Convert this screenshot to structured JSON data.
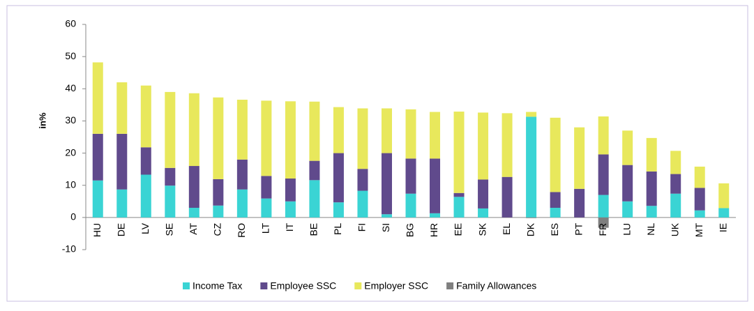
{
  "chart_data": {
    "type": "stacked_bar",
    "y_label": "in%",
    "categories": [
      "HU",
      "DE",
      "LV",
      "SE",
      "AT",
      "CZ",
      "RO",
      "LT",
      "IT",
      "BE",
      "PL",
      "FI",
      "SI",
      "BG",
      "HR",
      "EE",
      "SK",
      "EL",
      "DK",
      "ES",
      "PT",
      "FR",
      "LU",
      "NL",
      "UK",
      "MT",
      "IE"
    ],
    "series": [
      {
        "name": "Income Tax",
        "color": "#3ad4d4",
        "values": [
          11.5,
          8.7,
          13.3,
          9.9,
          3,
          3.7,
          8.7,
          5.9,
          5,
          11.6,
          4.7,
          8.3,
          1,
          7.4,
          1.3,
          6.4,
          2.8,
          0,
          31.3,
          3,
          0,
          7,
          5,
          3.6,
          7.4,
          2.2,
          2.9
        ]
      },
      {
        "name": "Employee SSC",
        "color": "#604a8c",
        "values": [
          14.5,
          17.3,
          8.5,
          5.5,
          13,
          8.2,
          9.3,
          7,
          7.1,
          6,
          15.3,
          6.8,
          19,
          10.9,
          17,
          1.2,
          9,
          12.6,
          0,
          4.9,
          8.9,
          12.6,
          11.3,
          10.7,
          6.1,
          7,
          0
        ]
      },
      {
        "name": "Employer SSC",
        "color": "#e8e85c",
        "values": [
          22.2,
          16,
          19.2,
          23.6,
          22.6,
          25.4,
          18.6,
          23.4,
          24,
          18.4,
          14.3,
          18.8,
          13.9,
          15.3,
          14.5,
          25.3,
          20.8,
          19.8,
          1.5,
          23.1,
          19.1,
          11.8,
          10.7,
          10.4,
          7.2,
          6.6,
          7.7
        ]
      },
      {
        "name": "Family Allowances",
        "color": "#7f7f7f",
        "values": [
          0,
          0,
          0,
          0,
          0,
          0,
          0,
          0,
          0,
          0,
          0,
          0,
          0,
          0,
          0,
          0,
          0,
          0,
          -0.2,
          0,
          0,
          -3.2,
          0,
          0,
          0,
          0,
          0
        ]
      }
    ],
    "ylim": [
      -10,
      60
    ],
    "yticks": [
      -10,
      0,
      10,
      20,
      30,
      40,
      50,
      60
    ]
  }
}
